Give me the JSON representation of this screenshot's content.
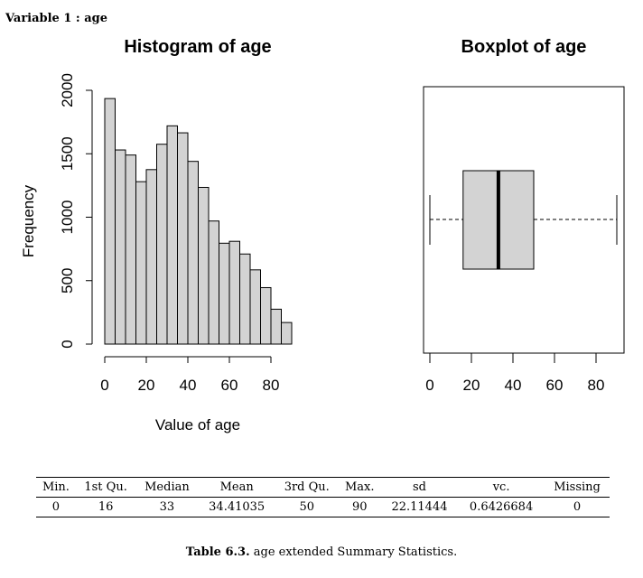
{
  "variable_label": "Variable 1 : age",
  "chart_data": [
    {
      "type": "bar",
      "subtype": "histogram",
      "title": "Histogram of age",
      "xlabel": "Value of age",
      "ylabel": "Frequency",
      "bin_width": 5,
      "bin_edges": [
        0,
        5,
        10,
        15,
        20,
        25,
        30,
        35,
        40,
        45,
        50,
        55,
        60,
        65,
        70,
        75,
        80,
        85,
        90
      ],
      "values": [
        1935,
        1530,
        1490,
        1280,
        1375,
        1575,
        1720,
        1665,
        1440,
        1235,
        970,
        795,
        810,
        710,
        585,
        445,
        275,
        170
      ],
      "xlim": [
        0,
        90
      ],
      "ylim": [
        0,
        2000
      ],
      "xticks": [
        "0",
        "20",
        "40",
        "60",
        "80"
      ],
      "yticks": [
        "0",
        "500",
        "1000",
        "1500",
        "2000"
      ],
      "bar_color": "#d3d3d3"
    },
    {
      "type": "boxplot",
      "title": "Boxplot of age",
      "whisker_low": 0,
      "q1": 16,
      "median": 33,
      "q3": 50,
      "whisker_high": 90,
      "xlim": [
        -2,
        92
      ],
      "xticks": [
        "0",
        "20",
        "40",
        "60",
        "80"
      ],
      "box_color": "#d3d3d3"
    }
  ],
  "summary_table": {
    "headers": [
      "Min.",
      "1st Qu.",
      "Median",
      "Mean",
      "3rd Qu.",
      "Max.",
      "sd",
      "vc.",
      "Missing"
    ],
    "values": [
      "0",
      "16",
      "33",
      "34.41035",
      "50",
      "90",
      "22.11444",
      "0.6426684",
      "0"
    ]
  },
  "caption": {
    "label": "Table 6.3.",
    "text": "age extended Summary Statistics."
  }
}
